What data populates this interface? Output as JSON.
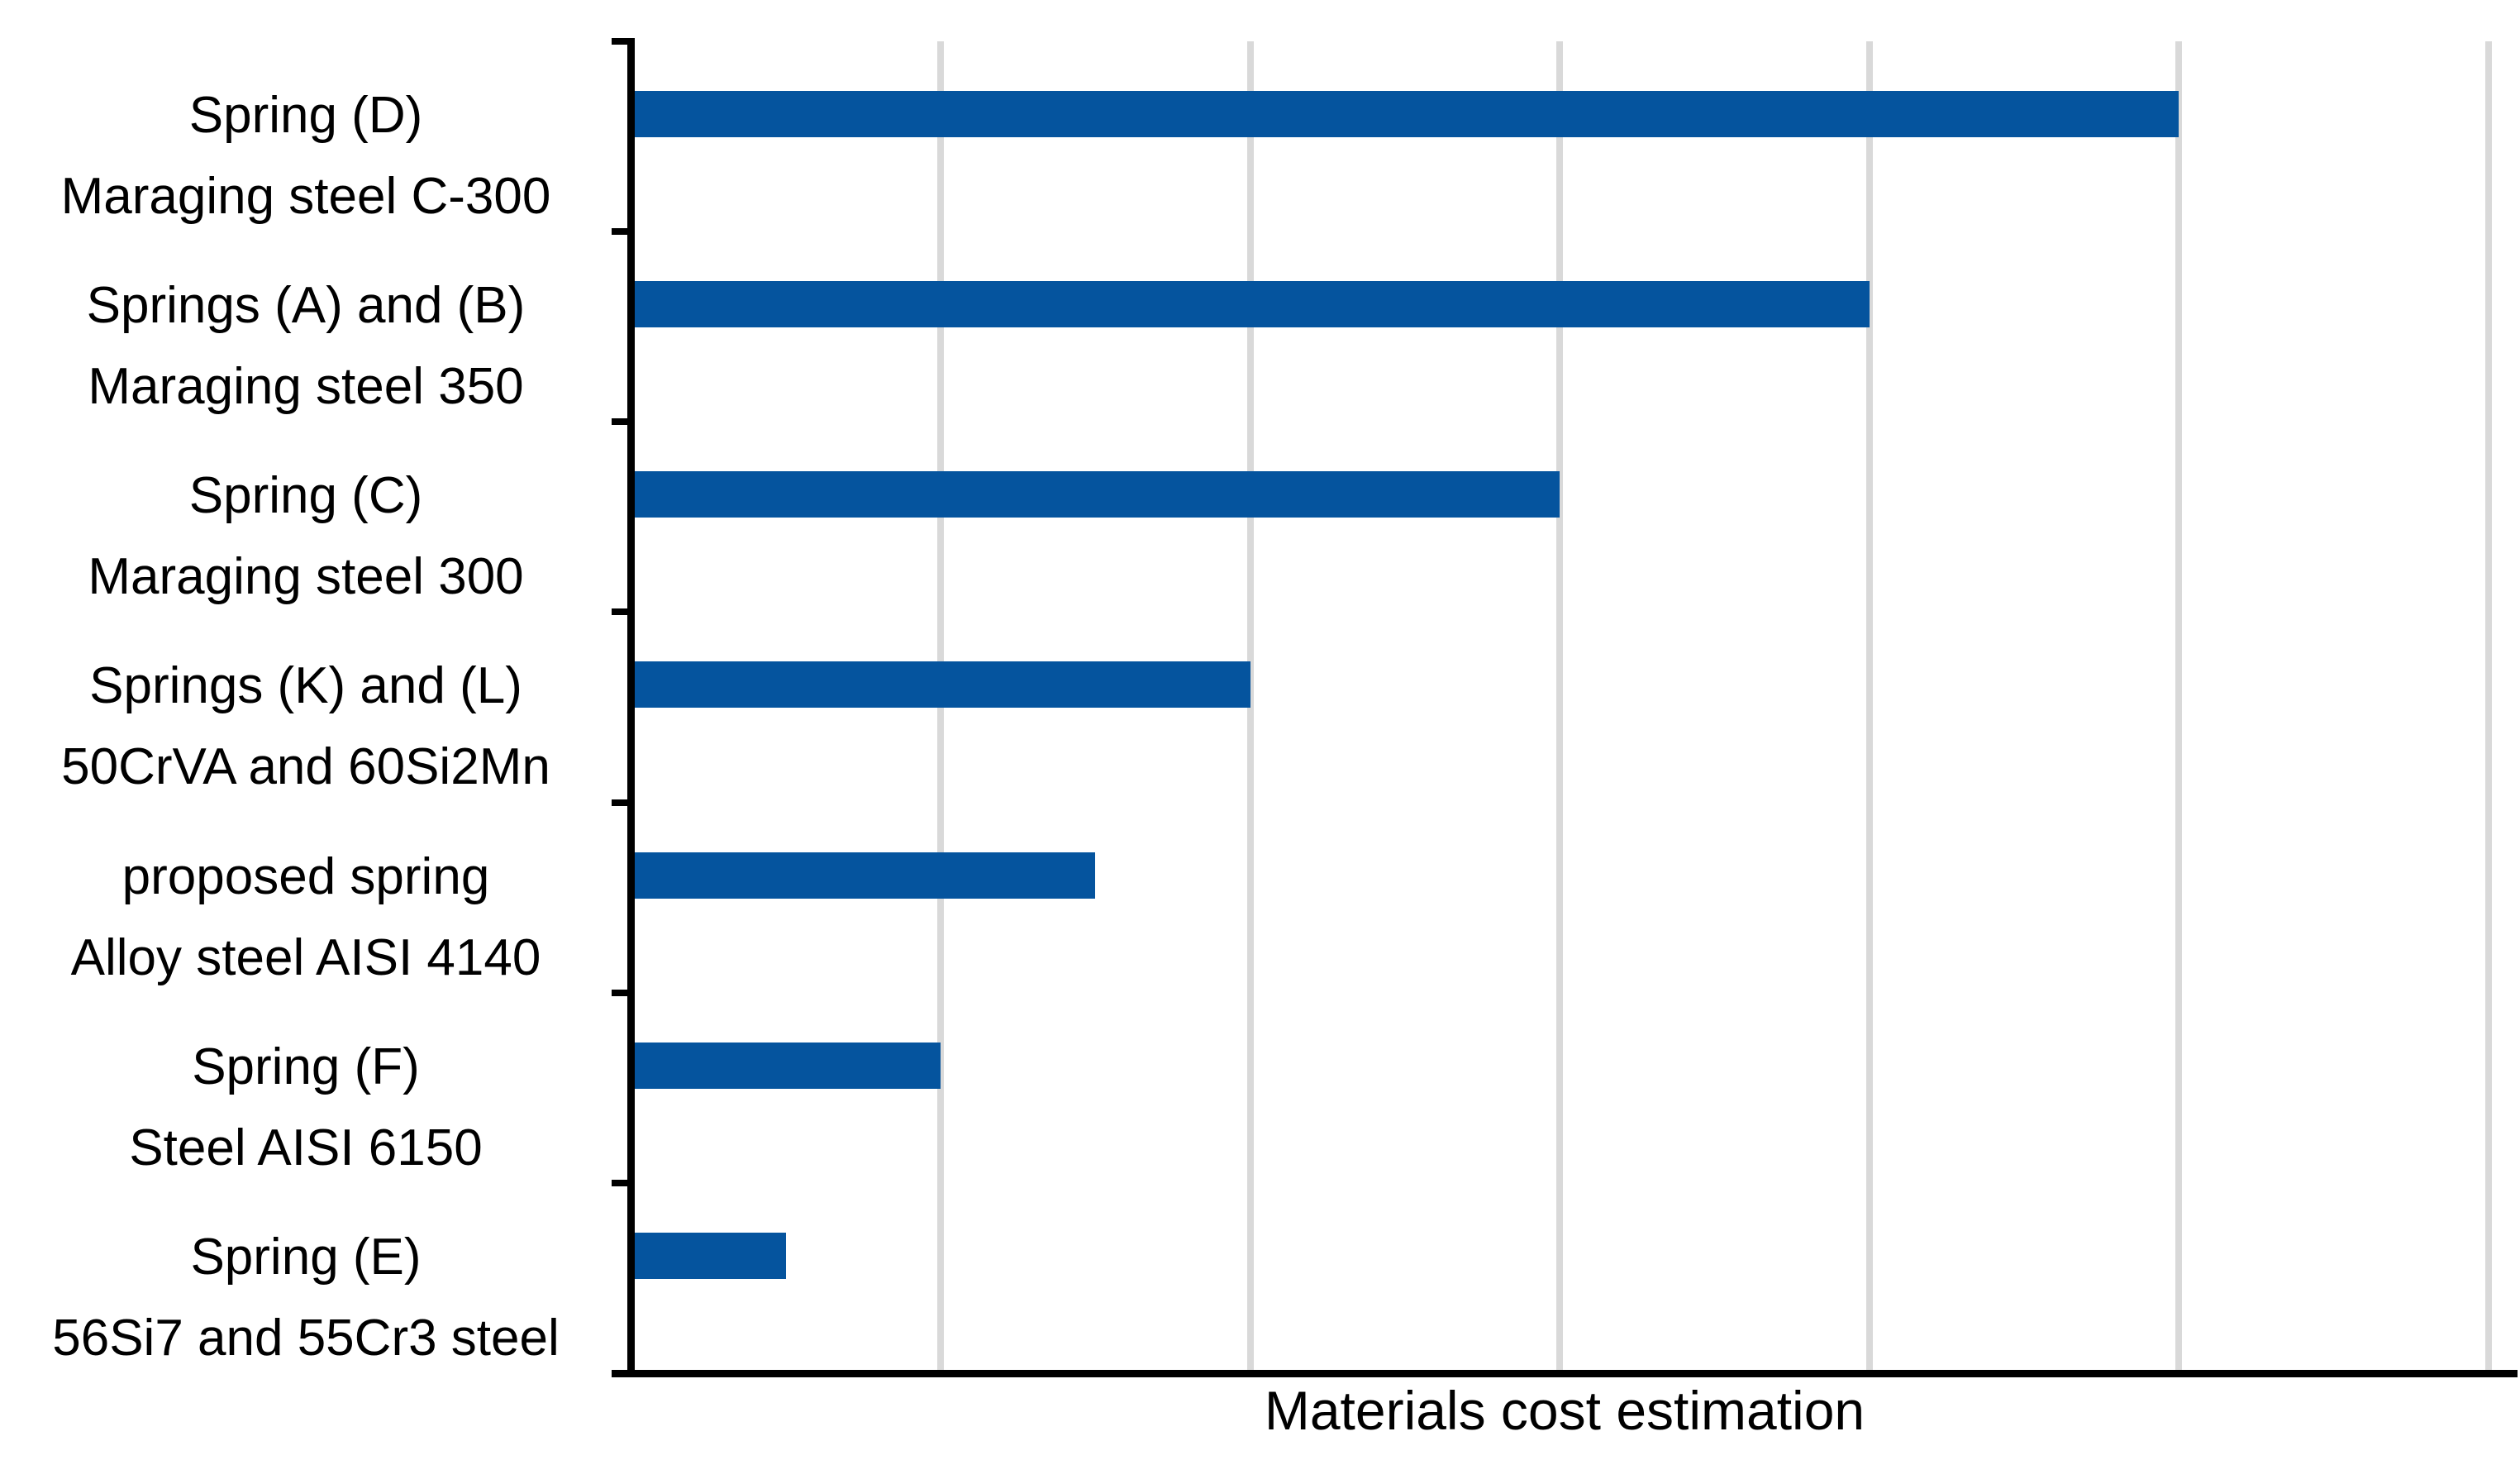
{
  "chart_data": {
    "type": "bar",
    "orientation": "horizontal",
    "title": "",
    "xlabel": "Materials cost estimation",
    "ylabel": "",
    "categories": [
      [
        "Spring (D)",
        "Maraging steel C-300"
      ],
      [
        "Springs (A) and (B)",
        "Maraging steel 350"
      ],
      [
        "Spring (C)",
        "Maraging steel 300"
      ],
      [
        "Springs (K) and  (L)",
        "50CrVA and 60Si2Mn"
      ],
      [
        "proposed spring",
        "Alloy steel AISI 4140"
      ],
      [
        "Spring (F)",
        "Steel AISI 6150"
      ],
      [
        "Spring (E)",
        "56Si7 and 55Cr3 steel"
      ]
    ],
    "values": [
      5,
      4,
      3,
      2,
      1.5,
      1,
      0.5
    ],
    "value_unit": "x-axis gridline intervals (x axis shows no numeric labels)",
    "x_axis": {
      "min": 0,
      "max": 6.08,
      "gridline_interval": 1,
      "numeric_labels_visible": false,
      "grid": true
    },
    "y_axis": {
      "tick_marks": 8,
      "numeric_labels_visible": false
    },
    "legend": null,
    "colors": {
      "bar": "#05549E",
      "gridline": "#D9D9D9",
      "axis": "#000000",
      "text": "#000000",
      "background": "#FFFFFF"
    }
  }
}
